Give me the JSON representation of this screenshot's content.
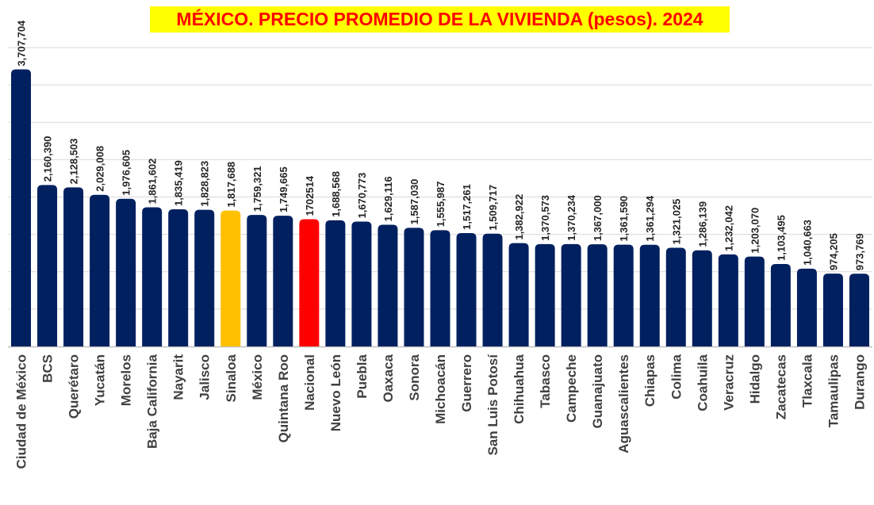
{
  "chart_data": {
    "type": "bar",
    "title": "MÉXICO. PRECIO PROMEDIO DE LA VIVIENDA (pesos). 2024",
    "xlabel": "",
    "ylabel": "",
    "ylim": [
      0,
      4000000
    ],
    "grid": true,
    "legend": "none",
    "categories": [
      "Ciudad de México",
      "BCS",
      "Querétaro",
      "Yucatán",
      "Morelos",
      "Baja California",
      "Nayarit",
      "Jalisco",
      "Sinaloa",
      "México",
      "Quintana Roo",
      "Nacional",
      "Nuevo León",
      "Puebla",
      "Oaxaca",
      "Sonora",
      "Michoacán",
      "Guerrero",
      "San Luis Potosí",
      "Chihuahua",
      "Tabasco",
      "Campeche",
      "Guanajuato",
      "Aguascalientes",
      "Chiapas",
      "Colima",
      "Coahuila",
      "Veracruz",
      "Hidalgo",
      "Zacatecas",
      "Tlaxcala",
      "Tamaulipas",
      "Durango"
    ],
    "values": [
      3707704,
      2160390,
      2128503,
      2029008,
      1976605,
      1861602,
      1835419,
      1828823,
      1817688,
      1759321,
      1749665,
      1702514,
      1688568,
      1670773,
      1629116,
      1587030,
      1555987,
      1517261,
      1509717,
      1382922,
      1370573,
      1370234,
      1367000,
      1361590,
      1361294,
      1321025,
      1286139,
      1232042,
      1203070,
      1103495,
      1040663,
      974205,
      973769
    ],
    "value_labels": [
      "3,707,704",
      "2,160,390",
      "2,128,503",
      "2,029,008",
      "1,976,605",
      "1,861,602",
      "1,835,419",
      "1,828,823",
      "1,817,688",
      "1,759,321",
      "1,749,665",
      "1702514",
      "1,688,568",
      "1,670,773",
      "1,629,116",
      "1,587,030",
      "1,555,987",
      "1,517,261",
      "1,509,717",
      "1,382,922",
      "1,370,573",
      "1,370,234",
      "1,367,000",
      "1,361,590",
      "1,361,294",
      "1,321,025",
      "1,286,139",
      "1,232,042",
      "1,203,070",
      "1,103,495",
      "1,040,663",
      "974,205",
      "973,769"
    ],
    "colors": {
      "default": "#002060",
      "highlight": "#ffc000",
      "national": "#ff0000",
      "title_bg": "#ffff00",
      "title_text": "#ff0000"
    },
    "highlighted": {
      "Sinaloa": "highlight",
      "Nacional": "national"
    }
  }
}
